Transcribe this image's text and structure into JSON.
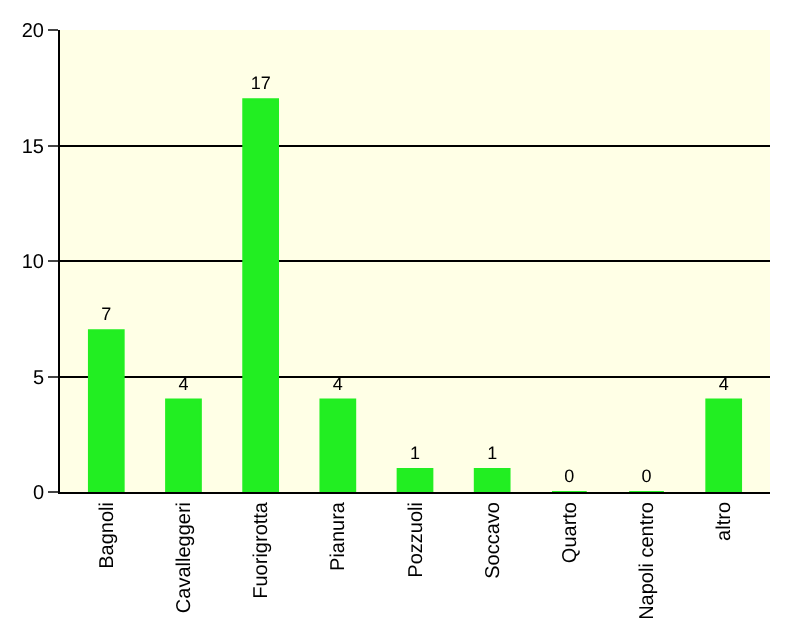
{
  "chart_data": {
    "type": "bar",
    "categories": [
      "Bagnoli",
      "Cavalleggeri",
      "Fuorigrotta",
      "Pianura",
      "Pozzuoli",
      "Soccavo",
      "Quarto",
      "Napoli centro",
      "altro"
    ],
    "values": [
      7,
      4,
      17,
      4,
      1,
      1,
      0,
      0,
      4
    ],
    "color": "#22ee22",
    "ylim": [
      0,
      20
    ],
    "yticks": [
      0,
      5,
      10,
      15,
      20
    ],
    "grid": "y",
    "data_labels": true
  }
}
